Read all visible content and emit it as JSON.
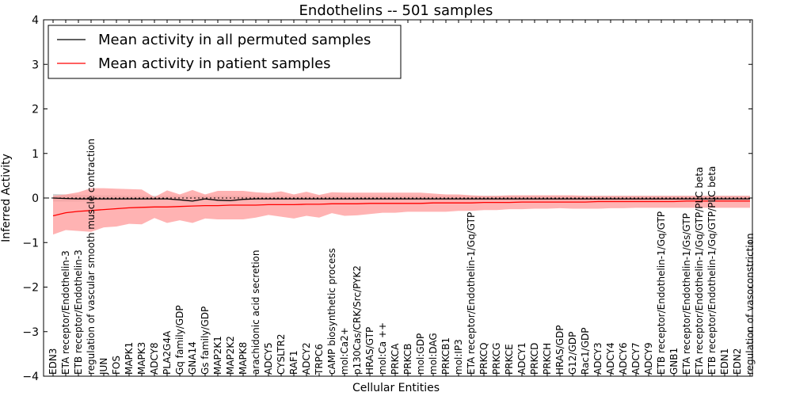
{
  "chart_data": {
    "type": "line",
    "title": "Endothelins -- 501 samples",
    "xlabel": "Cellular Entities",
    "ylabel": "Inferred Activity",
    "ylim": [
      -4,
      4
    ],
    "yticks": [
      "4",
      "3",
      "2",
      "1",
      "0",
      "−1",
      "−2",
      "−3",
      "−4"
    ],
    "legend_position": "top-left",
    "categories": [
      "EDN3",
      "ETA receptor/Endothelin-3",
      "ETB receptor/Endothelin-3",
      "regulation of vascular smooth muscle contraction",
      "JUN",
      "FOS",
      "MAPK1",
      "MAPK3",
      "ADCY8",
      "PLA2G4A",
      "Gq family/GDP",
      "GNA14",
      "Gs family/GDP",
      "MAP2K1",
      "MAP2K2",
      "MAPK8",
      "arachidonic acid secretion",
      "ADCY5",
      "CYSLTR2",
      "RAF1",
      "ADCY2",
      "TRPC6",
      "cAMP biosynthetic process",
      "mol:Ca2+",
      "p130Cas/CRK/Src/PYK2",
      "HRAS/GTP",
      "mol:Ca ++",
      "PRKCA",
      "PRKCB",
      "mol:GDP",
      "mol:DAG",
      "PRKCB1",
      "mol:IP3",
      "ETA receptor/Endothelin-1/Gq/GTP",
      "PRKCQ",
      "PRKCG",
      "PRKCE",
      "ADCY1",
      "PRKCD",
      "PRKCH",
      "HRAS/GDP",
      "G12/GDP",
      "Rac1/GDP",
      "ADCY3",
      "ADCY4",
      "ADCY6",
      "ADCY7",
      "ADCY9",
      "ETB receptor/Endothelin-1/Gq/GTP",
      "GNB1",
      "ETA receptor/Endothelin-1/Gs/GTP",
      "ETA receptor/Endothelin-1/Gq/GTP/PLC beta",
      "ETB receptor/Endothelin-1/Gq/GTP/PLC beta",
      "EDN1",
      "EDN2",
      "regulation of vasoconstriction"
    ],
    "series": [
      {
        "name": "Mean activity in all permuted samples",
        "color": "#000000",
        "values": [
          0,
          -0.01,
          -0.02,
          -0.02,
          -0.02,
          -0.02,
          -0.02,
          -0.02,
          -0.02,
          -0.02,
          -0.04,
          -0.07,
          -0.02,
          -0.05,
          -0.06,
          -0.03,
          -0.02,
          -0.02,
          -0.02,
          -0.02,
          -0.02,
          -0.02,
          -0.02,
          -0.02,
          -0.02,
          -0.02,
          -0.02,
          -0.02,
          -0.02,
          -0.02,
          -0.02,
          -0.02,
          -0.02,
          -0.02,
          -0.02,
          -0.02,
          -0.02,
          -0.02,
          -0.02,
          -0.02,
          -0.02,
          -0.02,
          -0.02,
          -0.02,
          -0.02,
          -0.02,
          -0.02,
          -0.02,
          -0.02,
          -0.02,
          -0.02,
          -0.02,
          -0.02,
          -0.02,
          -0.02,
          -0.02
        ],
        "band_low": [
          -0.08,
          -0.08,
          -0.08,
          -0.07,
          -0.06,
          -0.06,
          -0.05,
          -0.05,
          -0.05,
          -0.05,
          -0.05,
          -0.05,
          -0.05,
          -0.05,
          -0.05,
          -0.05,
          -0.05,
          -0.05,
          -0.05,
          -0.05,
          -0.05,
          -0.05,
          -0.05,
          -0.05,
          -0.05,
          -0.05,
          -0.05,
          -0.05,
          -0.05,
          -0.05,
          -0.05,
          -0.05,
          -0.05,
          -0.05,
          -0.05,
          -0.05,
          -0.05,
          -0.05,
          -0.05,
          -0.05,
          -0.05,
          -0.05,
          -0.05,
          -0.05,
          -0.05,
          -0.05,
          -0.05,
          -0.05,
          -0.05,
          -0.05,
          -0.05,
          -0.05,
          -0.05,
          -0.05,
          -0.05,
          -0.05
        ],
        "band_high": [
          0.09,
          0.08,
          0.07,
          0.07,
          0.06,
          0.06,
          0.05,
          0.05,
          0.05,
          0.05,
          0.05,
          0.05,
          0.05,
          0.05,
          0.05,
          0.05,
          0.05,
          0.05,
          0.05,
          0.05,
          0.05,
          0.05,
          0.05,
          0.05,
          0.05,
          0.05,
          0.05,
          0.05,
          0.05,
          0.05,
          0.05,
          0.05,
          0.05,
          0.05,
          0.05,
          0.05,
          0.05,
          0.05,
          0.05,
          0.05,
          0.05,
          0.05,
          0.05,
          0.05,
          0.05,
          0.05,
          0.05,
          0.05,
          0.05,
          0.05,
          0.05,
          0.05,
          0.05,
          0.05,
          0.05,
          0.05
        ]
      },
      {
        "name": "Mean activity in patient samples",
        "color": "#ff0000",
        "band_color": "#ff9a9a",
        "values": [
          -0.4,
          -0.33,
          -0.3,
          -0.28,
          -0.26,
          -0.24,
          -0.22,
          -0.21,
          -0.2,
          -0.2,
          -0.19,
          -0.18,
          -0.17,
          -0.17,
          -0.16,
          -0.16,
          -0.16,
          -0.15,
          -0.15,
          -0.15,
          -0.14,
          -0.14,
          -0.13,
          -0.13,
          -0.13,
          -0.12,
          -0.12,
          -0.12,
          -0.12,
          -0.12,
          -0.11,
          -0.11,
          -0.11,
          -0.11,
          -0.1,
          -0.1,
          -0.1,
          -0.09,
          -0.09,
          -0.09,
          -0.09,
          -0.09,
          -0.09,
          -0.08,
          -0.08,
          -0.08,
          -0.08,
          -0.08,
          -0.08,
          -0.08,
          -0.07,
          -0.07,
          -0.07,
          -0.07,
          -0.07,
          -0.07
        ],
        "band_low": [
          -0.82,
          -0.72,
          -0.74,
          -0.76,
          -0.66,
          -0.64,
          -0.58,
          -0.59,
          -0.45,
          -0.56,
          -0.5,
          -0.56,
          -0.46,
          -0.48,
          -0.48,
          -0.48,
          -0.44,
          -0.38,
          -0.42,
          -0.46,
          -0.4,
          -0.44,
          -0.34,
          -0.4,
          -0.39,
          -0.36,
          -0.33,
          -0.33,
          -0.31,
          -0.31,
          -0.31,
          -0.31,
          -0.29,
          -0.29,
          -0.27,
          -0.27,
          -0.25,
          -0.25,
          -0.24,
          -0.24,
          -0.23,
          -0.24,
          -0.24,
          -0.24,
          -0.23,
          -0.23,
          -0.22,
          -0.22,
          -0.22,
          -0.22,
          -0.22,
          -0.22,
          -0.22,
          -0.22,
          -0.22,
          -0.22
        ],
        "band_high": [
          0.05,
          0.08,
          0.13,
          0.22,
          0.22,
          0.21,
          0.2,
          0.19,
          0.02,
          0.17,
          0.08,
          0.18,
          0.08,
          0.16,
          0.16,
          0.16,
          0.13,
          0.11,
          0.15,
          0.08,
          0.14,
          0.07,
          0.13,
          0.12,
          0.12,
          0.12,
          0.12,
          0.12,
          0.12,
          0.12,
          0.1,
          0.08,
          0.08,
          0.06,
          0.05,
          0.05,
          0.06,
          0.06,
          0.06,
          0.06,
          0.06,
          0.06,
          0.05,
          0.05,
          0.05,
          0.05,
          0.05,
          0.05,
          0.05,
          0.05,
          0.05,
          0.05,
          0.05,
          0.05,
          0.05,
          0.05
        ]
      }
    ]
  }
}
